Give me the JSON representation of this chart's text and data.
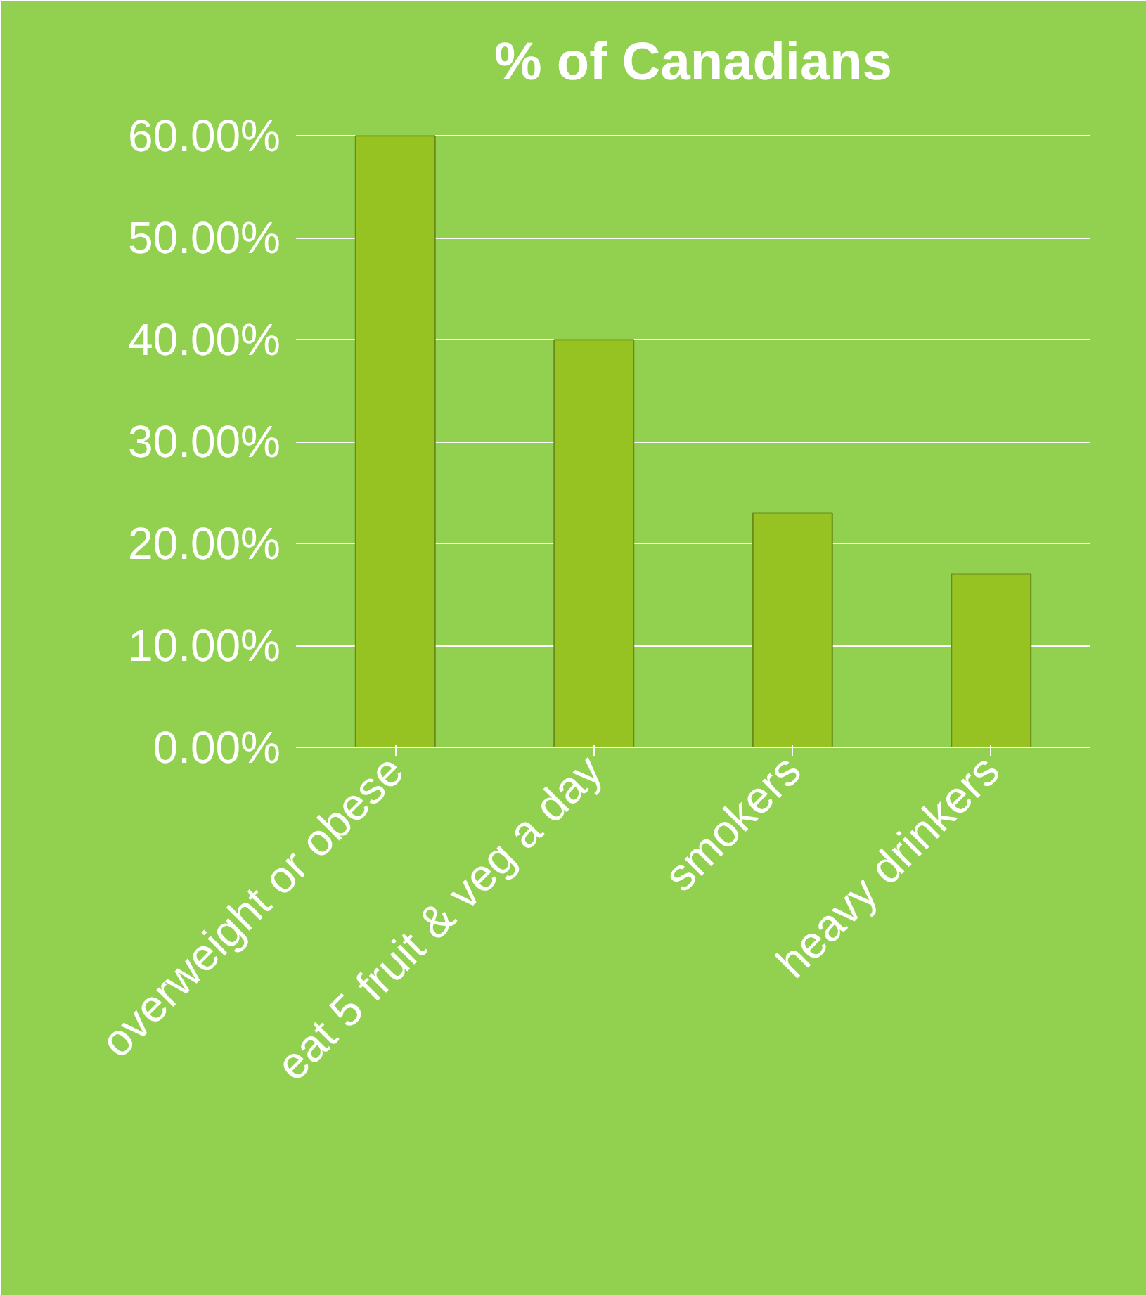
{
  "chart_data": {
    "type": "bar",
    "title": "% of Canadians",
    "categories": [
      "overweight or obese",
      "eat 5 fruit & veg a day",
      "smokers",
      "heavy drinkers"
    ],
    "values": [
      60,
      40,
      23,
      17
    ],
    "color": "#97c322",
    "ylim": [
      0,
      60
    ],
    "yticks": [
      {
        "value": 0,
        "label": "0.00%"
      },
      {
        "value": 10,
        "label": "10.00%"
      },
      {
        "value": 20,
        "label": "20.00%"
      },
      {
        "value": 30,
        "label": "30.00%"
      },
      {
        "value": 40,
        "label": "40.00%"
      },
      {
        "value": 50,
        "label": "50.00%"
      },
      {
        "value": 60,
        "label": "60.00%"
      }
    ],
    "grid": "y"
  }
}
